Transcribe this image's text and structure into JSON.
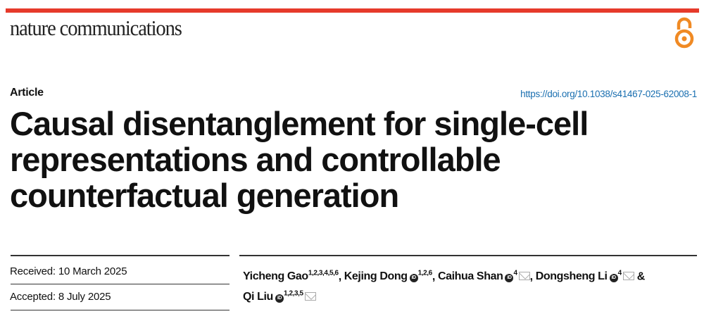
{
  "journal": {
    "name": "nature communications",
    "brand_color": "#e63a2b",
    "open_access_icon": "open-access-lock-icon",
    "open_access_color": "#f08a24"
  },
  "article_type": "Article",
  "doi": "https://doi.org/10.1038/s41467-025-62008-1",
  "title": "Causal disentanglement for single-cell representations and controllable counterfactual generation",
  "dates": {
    "received": "Received: 10 March 2025",
    "accepted": "Accepted: 8 July 2025"
  },
  "authors": [
    {
      "name": "Yicheng Gao",
      "affil": "1,2,3,4,5,6",
      "sep": ", "
    },
    {
      "name": "Kejing Dong",
      "affil": "1,2,6",
      "sep": ", "
    },
    {
      "name": "Caihua Shan",
      "affil": "4",
      "sep": ", "
    },
    {
      "name": "Dongsheng Li",
      "affil": "4",
      "sep": " & "
    },
    {
      "name": "Qi Liu",
      "affil": "1,2,3,5",
      "sep": ""
    }
  ]
}
